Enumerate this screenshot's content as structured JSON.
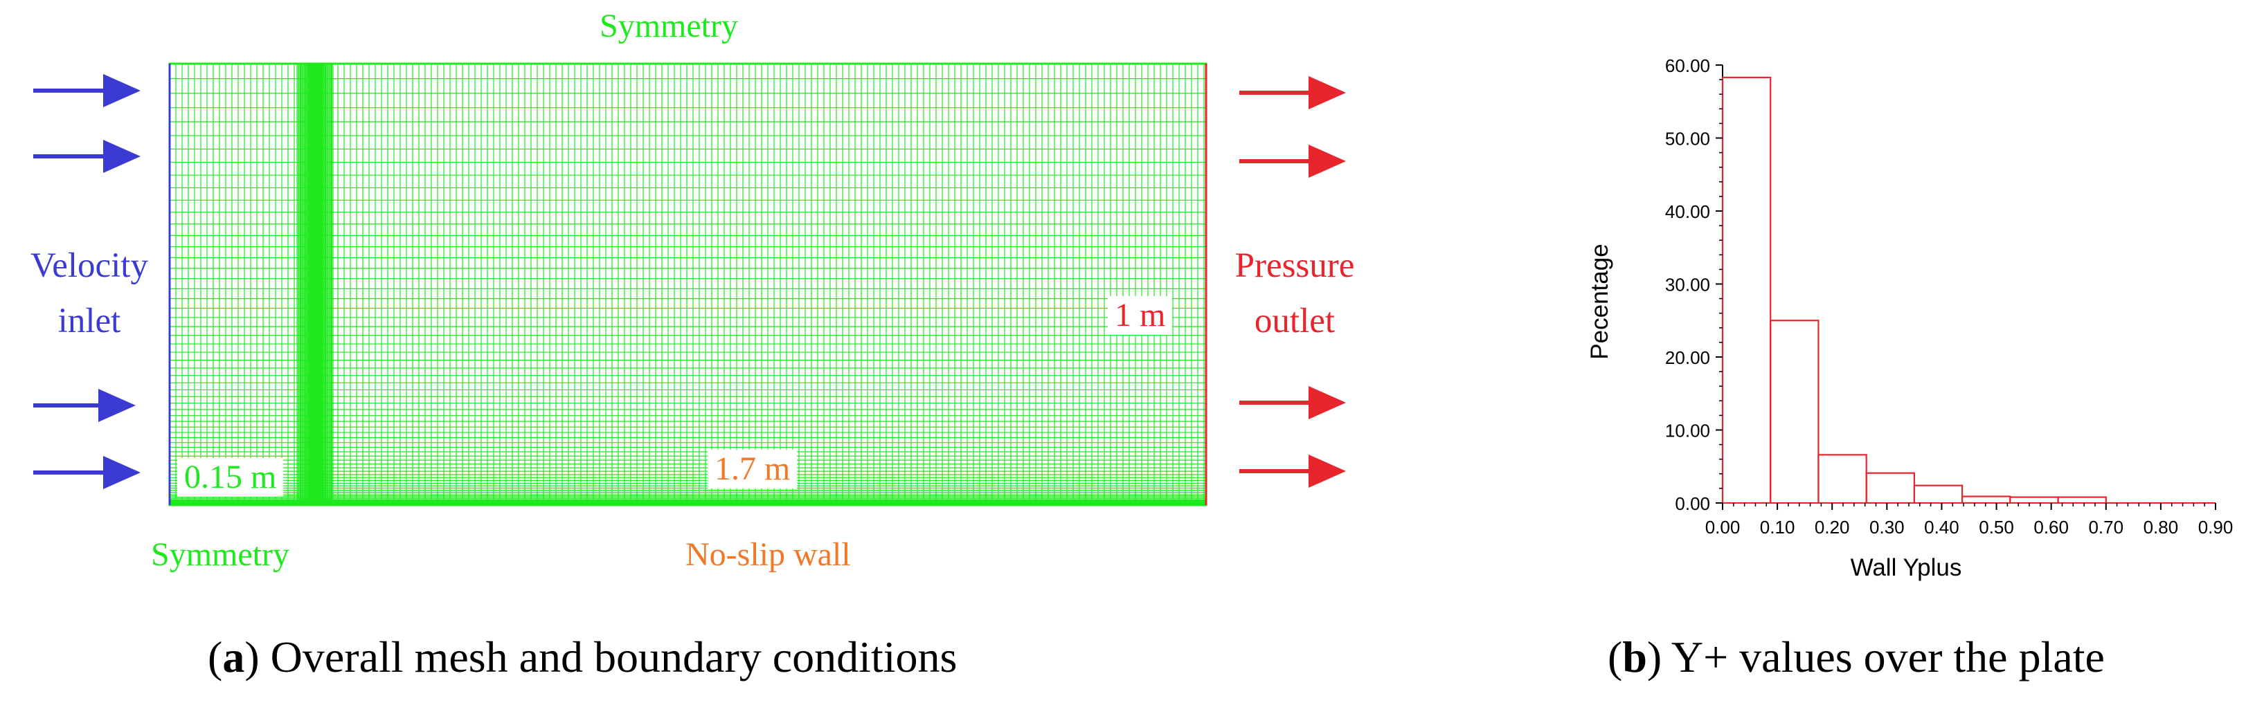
{
  "colors": {
    "mesh": "#1ee81e",
    "inlet": "#3b3bd4",
    "outlet": "#e8242c",
    "wall": "#f07828",
    "histogram": "#e8242c"
  },
  "panel_a": {
    "label_top_symmetry": "Symmetry",
    "label_velocity_inlet": [
      "Velocity",
      "inlet"
    ],
    "label_pressure_outlet": [
      "Pressure",
      "outlet"
    ],
    "label_bottom_symmetry": "Symmetry",
    "label_no_slip_wall": "No-slip wall",
    "dim_height": "1 m",
    "dim_plate_start": "0.15 m",
    "dim_plate_length": "1.7 m",
    "caption_letter": "a",
    "caption_text": " Overall mesh and boundary conditions"
  },
  "panel_b": {
    "caption_letter": "b",
    "caption_text": " Y+ values over the plate"
  },
  "chart_data": {
    "type": "bar",
    "xlabel": "Wall Yplus",
    "ylabel": "Pecentage",
    "xlim": [
      0.0,
      0.9
    ],
    "ylim": [
      0.0,
      60.0
    ],
    "x_ticks": [
      "0.00",
      "0.10",
      "0.20",
      "0.30",
      "0.40",
      "0.50",
      "0.60",
      "0.70",
      "0.80",
      "0.90"
    ],
    "y_ticks": [
      "0.00",
      "10.00",
      "20.00",
      "30.00",
      "40.00",
      "50.00",
      "60.00"
    ],
    "bin_edges": [
      0.0,
      0.0875,
      0.175,
      0.2625,
      0.35,
      0.4375,
      0.525,
      0.6125,
      0.7
    ],
    "values": [
      58.3,
      25.0,
      6.6,
      4.1,
      2.4,
      0.9,
      0.8,
      0.8
    ],
    "grid": false
  }
}
